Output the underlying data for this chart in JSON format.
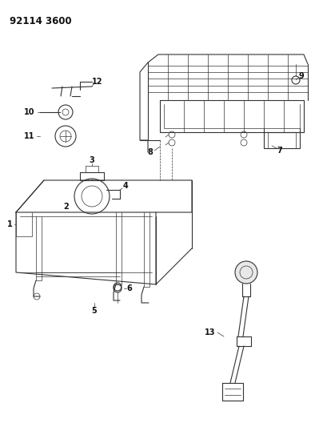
{
  "title": "92114 3600",
  "bg_color": "#ffffff",
  "line_color": "#333333",
  "text_color": "#111111",
  "title_fontsize": 8.5,
  "label_fontsize": 7,
  "figsize": [
    3.89,
    5.33
  ],
  "dpi": 100
}
